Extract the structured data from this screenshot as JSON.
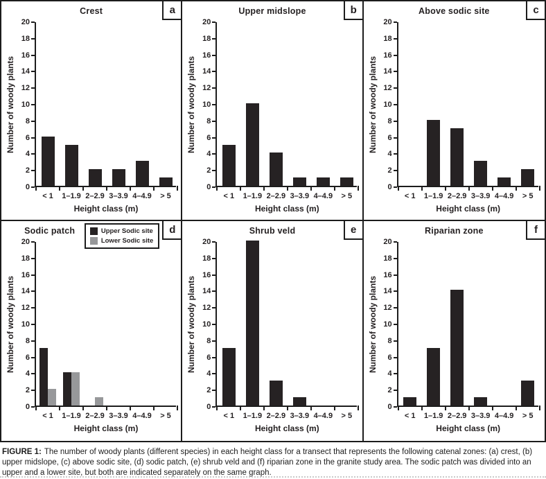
{
  "colors": {
    "bar_primary": "#262223",
    "bar_secondary": "#97989a",
    "border": "#1c1c1c"
  },
  "caption": {
    "prefix": "FIGURE 1:",
    "text": "The number of woody plants (different species) in each height class for a transect that represents the following catenal zones: (a) crest, (b) upper midslope, (c) above sodic site, (d) sodic patch, (e) shrub veld and (f) riparian zone in the granite study area. The sodic patch was divided into an upper and a lower site, but both are indicated separately on the same graph."
  },
  "chart_data": [
    {
      "type": "bar",
      "panel_label": "a",
      "title": "Crest",
      "categories": [
        "< 1",
        "1–1.9",
        "2–2.9",
        "3–3.9",
        "4–4.9",
        "> 5"
      ],
      "values": [
        6,
        5,
        2,
        2,
        3,
        1
      ],
      "xlabel": "Height class (m)",
      "ylabel": "Number of woody plants",
      "ylim": [
        0,
        20
      ],
      "ytick_step": 2,
      "grid": false
    },
    {
      "type": "bar",
      "panel_label": "b",
      "title": "Upper midslope",
      "categories": [
        "< 1",
        "1–1.9",
        "2–2.9",
        "3–3.9",
        "4–4.9",
        "> 5"
      ],
      "values": [
        5,
        10,
        4,
        1,
        1,
        1
      ],
      "xlabel": "Height class (m)",
      "ylabel": "Number of woody plants",
      "ylim": [
        0,
        20
      ],
      "ytick_step": 2,
      "grid": false
    },
    {
      "type": "bar",
      "panel_label": "c",
      "title": "Above sodic site",
      "categories": [
        "< 1",
        "1–1.9",
        "2–2.9",
        "3–3.9",
        "4–4.9",
        "> 5"
      ],
      "values": [
        0,
        8,
        7,
        3,
        1,
        2
      ],
      "xlabel": "Height class (m)",
      "ylabel": "Number of woody plants",
      "ylim": [
        0,
        20
      ],
      "ytick_step": 2,
      "grid": false
    },
    {
      "type": "bar",
      "panel_label": "d",
      "title": "Sodic patch",
      "categories": [
        "< 1",
        "1–1.9",
        "2–2.9",
        "3–3.9",
        "4–4.9",
        "> 5"
      ],
      "series": [
        {
          "name": "Upper Sodic site",
          "color_key": "bar_primary",
          "values": [
            7,
            4,
            0,
            0,
            0,
            0
          ]
        },
        {
          "name": "Lower Sodic site",
          "color_key": "bar_secondary",
          "values": [
            2,
            4,
            1,
            0,
            0,
            0
          ]
        }
      ],
      "legend": {
        "position": "top-right",
        "entries": [
          "Upper Sodic site",
          "Lower Sodic site"
        ]
      },
      "xlabel": "Height class (m)",
      "ylabel": "Number of woody plants",
      "ylim": [
        0,
        20
      ],
      "ytick_step": 2,
      "grid": false
    },
    {
      "type": "bar",
      "panel_label": "e",
      "title": "Shrub veld",
      "categories": [
        "< 1",
        "1–1.9",
        "2–2.9",
        "3–3.9",
        "4–4.9",
        "> 5"
      ],
      "values": [
        7,
        20,
        3,
        1,
        0,
        0
      ],
      "xlabel": "Height class (m)",
      "ylabel": "Number of woody plants",
      "ylim": [
        0,
        20
      ],
      "ytick_step": 2,
      "grid": false
    },
    {
      "type": "bar",
      "panel_label": "f",
      "title": "Riparian zone",
      "categories": [
        "< 1",
        "1–1.9",
        "2–2.9",
        "3–3.9",
        "4–4.9",
        "> 5"
      ],
      "values": [
        1,
        7,
        14,
        1,
        0,
        3
      ],
      "xlabel": "Height class (m)",
      "ylabel": "Number of woody plants",
      "ylim": [
        0,
        20
      ],
      "ytick_step": 2,
      "grid": false
    }
  ]
}
